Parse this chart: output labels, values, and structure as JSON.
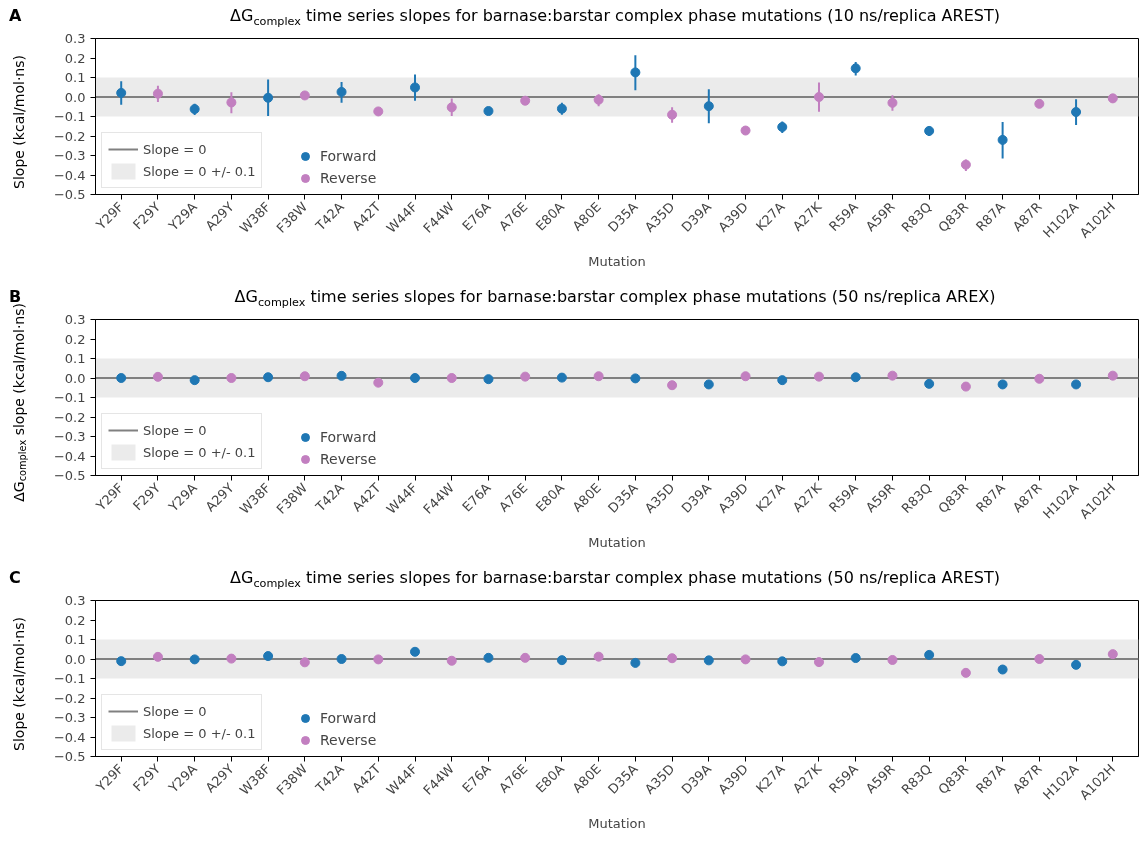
{
  "chart_data": [
    {
      "type": "scatter",
      "title": "ΔG$_{complex}$ time series slopes for barnase:barstar complex phase mutations (10 ns/replica AREST)",
      "xlabel": "Mutation",
      "ylabel": "Slope (kcal/mol·ns)",
      "annotations": [
        "A"
      ],
      "categories": [
        "Y29F",
        "F29Y",
        "Y29A",
        "A29Y",
        "W38F",
        "F38W",
        "T42A",
        "A42T",
        "W44F",
        "F44W",
        "E76A",
        "A76E",
        "E80A",
        "A80E",
        "D35A",
        "A35D",
        "D39A",
        "A39D",
        "K27A",
        "A27K",
        "R59A",
        "A59R",
        "R83Q",
        "Q83R",
        "R87A",
        "A87R",
        "H102A",
        "A102H"
      ],
      "series": [
        {
          "name": "Forward",
          "color": "#1f77b4",
          "values": [
            0.021,
            null,
            -0.062,
            null,
            -0.004,
            null,
            0.026,
            null,
            0.049,
            null,
            -0.072,
            null,
            -0.06,
            null,
            0.126,
            null,
            -0.047,
            null,
            -0.154,
            null,
            0.147,
            null,
            -0.174,
            null,
            -0.22,
            null,
            -0.077,
            null
          ],
          "errors": [
            [
              -0.04,
              0.081
            ],
            null,
            [
              -0.092,
              -0.034
            ],
            null,
            [
              -0.098,
              0.09
            ],
            null,
            [
              -0.03,
              0.077
            ],
            null,
            [
              -0.019,
              0.115
            ],
            null,
            null,
            null,
            [
              -0.091,
              -0.03
            ],
            null,
            [
              0.035,
              0.214
            ],
            null,
            [
              -0.135,
              0.04
            ],
            null,
            [
              -0.184,
              -0.126
            ],
            null,
            [
              0.11,
              0.18
            ],
            null,
            [
              -0.2,
              -0.15
            ],
            null,
            [
              -0.316,
              -0.128
            ],
            null,
            [
              -0.144,
              -0.012
            ],
            null
          ]
        },
        {
          "name": "Reverse",
          "color": "#c27fc0",
          "values": [
            null,
            0.017,
            null,
            -0.028,
            null,
            0.008,
            null,
            -0.074,
            null,
            -0.053,
            null,
            -0.019,
            null,
            -0.014,
            null,
            -0.091,
            null,
            -0.172,
            null,
            0.0,
            null,
            -0.03,
            null,
            -0.347,
            null,
            -0.035,
            null,
            -0.007
          ],
          "errors": [
            null,
            [
              -0.026,
              0.058
            ],
            null,
            [
              -0.083,
              0.025
            ],
            null,
            null,
            null,
            null,
            null,
            [
              -0.098,
              -0.008
            ],
            null,
            null,
            null,
            [
              -0.047,
              0.014
            ],
            null,
            [
              -0.132,
              -0.053
            ],
            null,
            null,
            null,
            [
              -0.075,
              0.074
            ],
            null,
            [
              -0.07,
              0.009
            ],
            null,
            [
              -0.38,
              -0.32
            ],
            null,
            null,
            null,
            [
              -0.03,
              0.01
            ]
          ]
        }
      ],
      "ylim": [
        -0.5,
        0.3
      ],
      "yticks": [
        {
          "value": -0.5,
          "label": "−0.5"
        },
        {
          "value": -0.4,
          "label": "−0.4"
        },
        {
          "value": -0.3,
          "label": "−0.3"
        },
        {
          "value": -0.2,
          "label": "−0.2"
        },
        {
          "value": -0.1,
          "label": "−0.1"
        },
        {
          "value": 0.0,
          "label": "0.0"
        },
        {
          "value": 0.1,
          "label": "0.1"
        },
        {
          "value": 0.2,
          "label": "0.2"
        },
        {
          "value": 0.3,
          "label": "0.3"
        }
      ],
      "ref_lines": [
        {
          "axis": "y",
          "value": 0,
          "label": "Slope = 0",
          "color": "#808080"
        }
      ],
      "bands": [
        {
          "axis": "y",
          "from": -0.1,
          "to": 0.1,
          "label": "Slope = 0 +/- 0.1",
          "color": "#ebebeb"
        }
      ],
      "legend": "bottom left",
      "marker": "circle",
      "grid": false
    },
    {
      "type": "scatter",
      "title": "ΔG$_{complex}$ time series slopes for barnase:barstar complex phase mutations (50 ns/replica AREX)",
      "xlabel": "Mutation",
      "ylabel": "ΔG$_{complex}$ slope (kcal/mol·ns)",
      "annotations": [
        "B"
      ],
      "categories": [
        "Y29F",
        "F29Y",
        "Y29A",
        "A29Y",
        "W38F",
        "F38W",
        "T42A",
        "A42T",
        "W44F",
        "F44W",
        "E76A",
        "A76E",
        "E80A",
        "A80E",
        "D35A",
        "A35D",
        "D39A",
        "A39D",
        "K27A",
        "A27K",
        "R59A",
        "A59R",
        "R83Q",
        "Q83R",
        "R87A",
        "A87R",
        "H102A",
        "A102H"
      ],
      "series": [
        {
          "name": "Forward",
          "color": "#1f77b4",
          "values": [
            0.0,
            null,
            -0.011,
            null,
            0.004,
            null,
            0.011,
            null,
            0.0,
            null,
            -0.006,
            null,
            0.002,
            null,
            -0.002,
            null,
            -0.033,
            null,
            -0.011,
            null,
            0.004,
            null,
            -0.03,
            null,
            -0.033,
            null,
            -0.033,
            null
          ]
        },
        {
          "name": "Reverse",
          "color": "#c27fc0",
          "values": [
            null,
            0.006,
            null,
            0.0,
            null,
            0.009,
            null,
            -0.024,
            null,
            0.0,
            null,
            0.007,
            null,
            0.009,
            null,
            -0.037,
            null,
            0.009,
            null,
            0.007,
            null,
            0.012,
            null,
            -0.044,
            null,
            -0.004,
            null,
            0.012
          ]
        }
      ],
      "ylim": [
        -0.5,
        0.3
      ],
      "yticks": [
        {
          "value": -0.5,
          "label": "−0.5"
        },
        {
          "value": -0.4,
          "label": "−0.4"
        },
        {
          "value": -0.3,
          "label": "−0.3"
        },
        {
          "value": -0.2,
          "label": "−0.2"
        },
        {
          "value": -0.1,
          "label": "−0.1"
        },
        {
          "value": 0.0,
          "label": "0.0"
        },
        {
          "value": 0.1,
          "label": "0.1"
        },
        {
          "value": 0.2,
          "label": "0.2"
        },
        {
          "value": 0.3,
          "label": "0.3"
        }
      ],
      "ref_lines": [
        {
          "axis": "y",
          "value": 0,
          "label": "Slope = 0",
          "color": "#808080"
        }
      ],
      "bands": [
        {
          "axis": "y",
          "from": -0.1,
          "to": 0.1,
          "label": "Slope = 0 +/- 0.1",
          "color": "#ebebeb"
        }
      ],
      "legend": "bottom left",
      "marker": "circle",
      "grid": false
    },
    {
      "type": "scatter",
      "title": "ΔG$_{complex}$ time series slopes for barnase:barstar complex phase mutations (50 ns/replica AREST)",
      "xlabel": "Mutation",
      "ylabel": "Slope (kcal/mol·ns)",
      "annotations": [
        "C"
      ],
      "categories": [
        "Y29F",
        "F29Y",
        "Y29A",
        "A29Y",
        "W38F",
        "F38W",
        "T42A",
        "A42T",
        "W44F",
        "F44W",
        "E76A",
        "A76E",
        "E80A",
        "A80E",
        "D35A",
        "A35D",
        "D39A",
        "A39D",
        "K27A",
        "A27K",
        "R59A",
        "A59R",
        "R83Q",
        "Q83R",
        "R87A",
        "A87R",
        "H102A",
        "A102H"
      ],
      "series": [
        {
          "name": "Forward",
          "color": "#1f77b4",
          "values": [
            -0.011,
            null,
            -0.002,
            null,
            0.015,
            null,
            0.0,
            null,
            0.037,
            null,
            0.006,
            null,
            -0.006,
            null,
            -0.02,
            null,
            -0.007,
            null,
            -0.012,
            null,
            0.005,
            null,
            0.021,
            null,
            -0.054,
            null,
            -0.03,
            null
          ]
        },
        {
          "name": "Reverse",
          "color": "#c27fc0",
          "values": [
            null,
            0.011,
            null,
            0.002,
            null,
            -0.017,
            null,
            -0.002,
            null,
            -0.009,
            null,
            0.006,
            null,
            0.012,
            null,
            0.004,
            null,
            -0.002,
            null,
            -0.016,
            null,
            -0.005,
            null,
            -0.071,
            null,
            0.0,
            null,
            0.025
          ]
        }
      ],
      "ylim": [
        -0.5,
        0.3
      ],
      "yticks": [
        {
          "value": -0.5,
          "label": "−0.5"
        },
        {
          "value": -0.4,
          "label": "−0.4"
        },
        {
          "value": -0.3,
          "label": "−0.3"
        },
        {
          "value": -0.2,
          "label": "−0.2"
        },
        {
          "value": -0.1,
          "label": "−0.1"
        },
        {
          "value": 0.0,
          "label": "0.0"
        },
        {
          "value": 0.1,
          "label": "0.1"
        },
        {
          "value": 0.2,
          "label": "0.2"
        },
        {
          "value": 0.3,
          "label": "0.3"
        }
      ],
      "ref_lines": [
        {
          "axis": "y",
          "value": 0,
          "label": "Slope = 0",
          "color": "#808080"
        }
      ],
      "bands": [
        {
          "axis": "y",
          "from": -0.1,
          "to": 0.1,
          "label": "Slope = 0 +/- 0.1",
          "color": "#ebebeb"
        }
      ],
      "legend": "bottom left",
      "marker": "circle",
      "grid": false
    }
  ]
}
